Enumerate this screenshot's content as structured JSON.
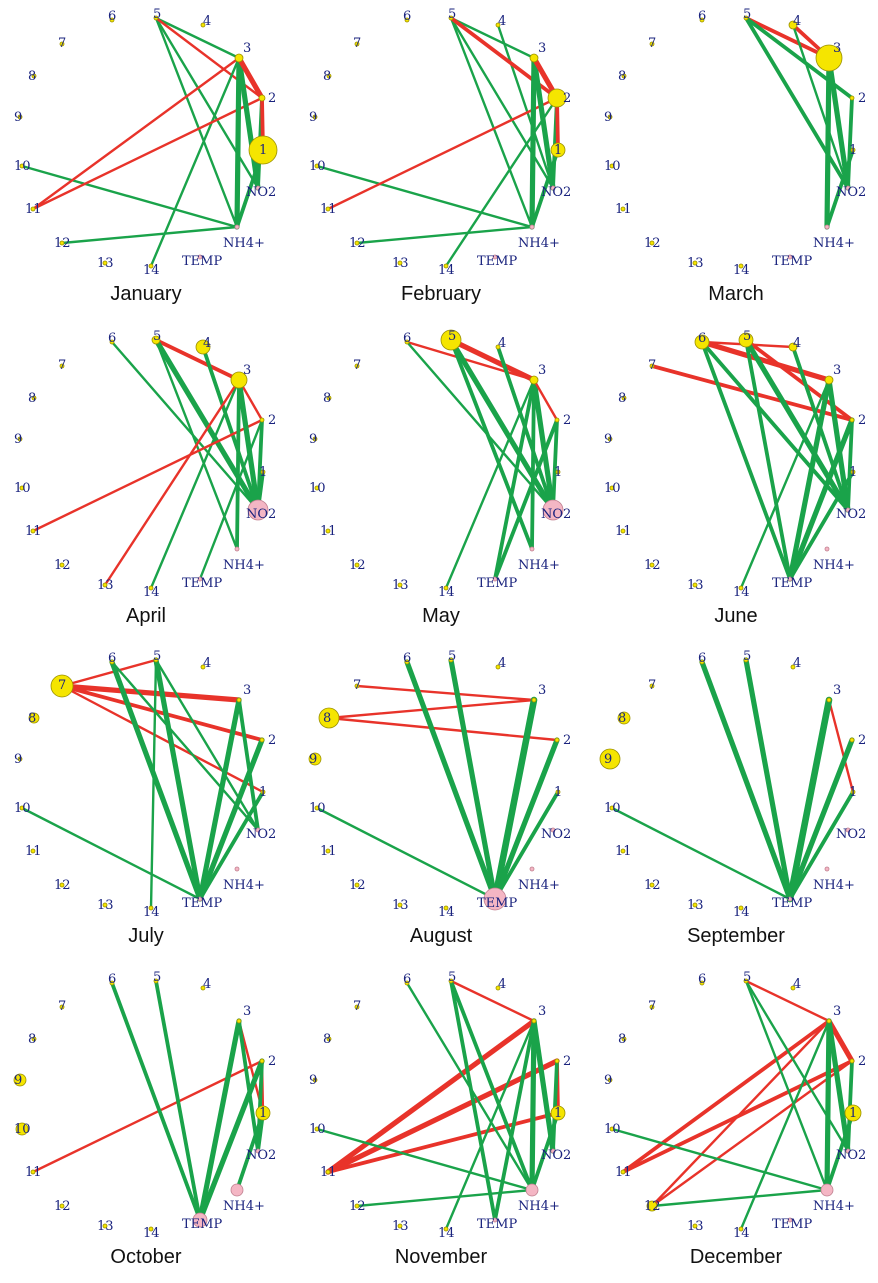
{
  "colors": {
    "positive": "#1aa34a",
    "negative": "#e8332a",
    "station_node": "#f5e500",
    "station_stroke": "#9a9000",
    "pollutant_node": "#f4b6c4",
    "pollutant_stroke": "#c08090",
    "label": "#1a237e"
  },
  "nodes": [
    {
      "id": "1",
      "label": "1",
      "kind": "station"
    },
    {
      "id": "2",
      "label": "2",
      "kind": "station"
    },
    {
      "id": "3",
      "label": "3",
      "kind": "station"
    },
    {
      "id": "4",
      "label": "4",
      "kind": "station"
    },
    {
      "id": "5",
      "label": "5",
      "kind": "station"
    },
    {
      "id": "6",
      "label": "6",
      "kind": "station"
    },
    {
      "id": "7",
      "label": "7",
      "kind": "station"
    },
    {
      "id": "8",
      "label": "8",
      "kind": "station"
    },
    {
      "id": "9",
      "label": "9",
      "kind": "station"
    },
    {
      "id": "10",
      "label": "10",
      "kind": "station"
    },
    {
      "id": "11",
      "label": "11",
      "kind": "station"
    },
    {
      "id": "12",
      "label": "12",
      "kind": "station"
    },
    {
      "id": "13",
      "label": "13",
      "kind": "station"
    },
    {
      "id": "14",
      "label": "14",
      "kind": "station"
    },
    {
      "id": "TEMP",
      "label": "TEMP",
      "kind": "pollutant"
    },
    {
      "id": "NH4",
      "label": "NH4+",
      "kind": "pollutant"
    },
    {
      "id": "NO2",
      "label": "NO2",
      "kind": "pollutant"
    }
  ],
  "months": [
    {
      "name": "January",
      "sizes": {
        "1": 14,
        "3": 4,
        "2": 3
      },
      "edges": [
        [
          "5",
          "3",
          "pos",
          1
        ],
        [
          "5",
          "NO2",
          "pos",
          1
        ],
        [
          "5",
          "NH4",
          "pos",
          1
        ],
        [
          "5",
          "2",
          "neg",
          1
        ],
        [
          "14",
          "3",
          "pos",
          1
        ],
        [
          "10",
          "NH4",
          "pos",
          1
        ],
        [
          "12",
          "NH4",
          "pos",
          1
        ],
        [
          "11",
          "3",
          "neg",
          1
        ],
        [
          "11",
          "2",
          "neg",
          1
        ],
        [
          "3",
          "NH4",
          "pos",
          3
        ],
        [
          "3",
          "NO2",
          "pos",
          3
        ],
        [
          "2",
          "NO2",
          "pos",
          2
        ],
        [
          "1",
          "NH4",
          "pos",
          2
        ],
        [
          "3",
          "2",
          "neg",
          3
        ],
        [
          "2",
          "1",
          "neg",
          2
        ]
      ]
    },
    {
      "name": "February",
      "sizes": {
        "2": 9,
        "1": 7,
        "3": 4
      },
      "edges": [
        [
          "5",
          "3",
          "pos",
          1
        ],
        [
          "5",
          "NO2",
          "pos",
          1
        ],
        [
          "5",
          "NH4",
          "pos",
          1
        ],
        [
          "4",
          "NO2",
          "pos",
          1
        ],
        [
          "5",
          "2",
          "neg",
          2
        ],
        [
          "14",
          "2",
          "pos",
          1
        ],
        [
          "10",
          "NH4",
          "pos",
          1
        ],
        [
          "12",
          "NH4",
          "pos",
          1
        ],
        [
          "11",
          "2",
          "neg",
          1
        ],
        [
          "3",
          "NH4",
          "pos",
          3
        ],
        [
          "3",
          "NO2",
          "pos",
          3
        ],
        [
          "2",
          "NO2",
          "pos",
          2
        ],
        [
          "1",
          "NH4",
          "pos",
          2
        ],
        [
          "3",
          "2",
          "neg",
          3
        ],
        [
          "2",
          "1",
          "neg",
          2
        ]
      ]
    },
    {
      "name": "March",
      "sizes": {
        "3": 13,
        "4": 4
      },
      "edges": [
        [
          "5",
          "3",
          "neg",
          2
        ],
        [
          "4",
          "3",
          "neg",
          2
        ],
        [
          "4",
          "NO2",
          "pos",
          1
        ],
        [
          "5",
          "NO2",
          "pos",
          2
        ],
        [
          "5",
          "2",
          "pos",
          2
        ],
        [
          "3",
          "NH4",
          "pos",
          3
        ],
        [
          "3",
          "NO2",
          "pos",
          3
        ],
        [
          "2",
          "NO2",
          "pos",
          2
        ],
        [
          "1",
          "NH4",
          "pos",
          2
        ]
      ]
    },
    {
      "name": "April",
      "sizes": {
        "NO2": 10,
        "3": 8,
        "4": 7,
        "5": 4
      },
      "edges": [
        [
          "5",
          "3",
          "neg",
          2
        ],
        [
          "6",
          "NO2",
          "pos",
          1
        ],
        [
          "5",
          "NO2",
          "pos",
          3
        ],
        [
          "4",
          "NO2",
          "pos",
          2
        ],
        [
          "5",
          "NH4",
          "pos",
          1
        ],
        [
          "14",
          "3",
          "pos",
          1
        ],
        [
          "TEMP",
          "2",
          "pos",
          1
        ],
        [
          "11",
          "2",
          "neg",
          1
        ],
        [
          "13",
          "3",
          "neg",
          1
        ],
        [
          "3",
          "2",
          "neg",
          1
        ],
        [
          "3",
          "NO2",
          "pos",
          3
        ],
        [
          "3",
          "NH4",
          "pos",
          2
        ],
        [
          "2",
          "NO2",
          "pos",
          2
        ],
        [
          "1",
          "NO2",
          "pos",
          2
        ]
      ]
    },
    {
      "name": "May",
      "sizes": {
        "5": 10,
        "NO2": 10,
        "3": 4
      },
      "edges": [
        [
          "5",
          "3",
          "neg",
          3
        ],
        [
          "6",
          "3",
          "neg",
          1
        ],
        [
          "5",
          "NO2",
          "pos",
          3
        ],
        [
          "6",
          "NO2",
          "pos",
          1
        ],
        [
          "4",
          "NO2",
          "pos",
          2
        ],
        [
          "5",
          "NH4",
          "pos",
          2
        ],
        [
          "14",
          "3",
          "pos",
          1
        ],
        [
          "TEMP",
          "3",
          "pos",
          2
        ],
        [
          "TEMP",
          "2",
          "pos",
          2
        ],
        [
          "3",
          "NO2",
          "pos",
          3
        ],
        [
          "3",
          "NH4",
          "pos",
          2
        ],
        [
          "2",
          "NO2",
          "pos",
          2
        ],
        [
          "3",
          "2",
          "neg",
          1
        ]
      ]
    },
    {
      "name": "June",
      "sizes": {
        "6": 7,
        "5": 7,
        "3": 4,
        "4": 4
      },
      "edges": [
        [
          "6",
          "3",
          "neg",
          3
        ],
        [
          "7",
          "2",
          "neg",
          2
        ],
        [
          "5",
          "2",
          "neg",
          2
        ],
        [
          "6",
          "4",
          "neg",
          1
        ],
        [
          "6",
          "NO2",
          "pos",
          2
        ],
        [
          "5",
          "NO2",
          "pos",
          3
        ],
        [
          "6",
          "TEMP",
          "pos",
          2
        ],
        [
          "5",
          "TEMP",
          "pos",
          2
        ],
        [
          "4",
          "NO2",
          "pos",
          2
        ],
        [
          "14",
          "3",
          "pos",
          1
        ],
        [
          "TEMP",
          "3",
          "pos",
          3
        ],
        [
          "TEMP",
          "2",
          "pos",
          3
        ],
        [
          "TEMP",
          "1",
          "pos",
          2
        ],
        [
          "3",
          "NO2",
          "pos",
          3
        ],
        [
          "2",
          "NO2",
          "pos",
          2
        ]
      ]
    },
    {
      "name": "July",
      "sizes": {
        "7": 11,
        "8": 5
      },
      "edges": [
        [
          "7",
          "3",
          "neg",
          3
        ],
        [
          "7",
          "2",
          "neg",
          2
        ],
        [
          "7",
          "1",
          "neg",
          1
        ],
        [
          "7",
          "5",
          "neg",
          1
        ],
        [
          "6",
          "NO2",
          "pos",
          1
        ],
        [
          "5",
          "NO2",
          "pos",
          1
        ],
        [
          "6",
          "TEMP",
          "pos",
          3
        ],
        [
          "5",
          "TEMP",
          "pos",
          3
        ],
        [
          "14",
          "5",
          "pos",
          1
        ],
        [
          "10",
          "TEMP",
          "pos",
          1
        ],
        [
          "TEMP",
          "3",
          "pos",
          3
        ],
        [
          "TEMP",
          "2",
          "pos",
          3
        ],
        [
          "TEMP",
          "1",
          "pos",
          2
        ],
        [
          "3",
          "NO2",
          "pos",
          2
        ]
      ]
    },
    {
      "name": "August",
      "sizes": {
        "TEMP": 11,
        "8": 10,
        "9": 6
      },
      "edges": [
        [
          "7",
          "3",
          "neg",
          1
        ],
        [
          "8",
          "3",
          "neg",
          1
        ],
        [
          "8",
          "2",
          "neg",
          1
        ],
        [
          "6",
          "TEMP",
          "pos",
          3
        ],
        [
          "5",
          "TEMP",
          "pos",
          3
        ],
        [
          "10",
          "TEMP",
          "pos",
          1
        ],
        [
          "TEMP",
          "3",
          "pos",
          4
        ],
        [
          "TEMP",
          "2",
          "pos",
          3
        ],
        [
          "TEMP",
          "1",
          "pos",
          2
        ]
      ]
    },
    {
      "name": "September",
      "sizes": {
        "9": 10,
        "8": 6
      },
      "edges": [
        [
          "3",
          "1",
          "neg",
          1
        ],
        [
          "6",
          "TEMP",
          "pos",
          3
        ],
        [
          "5",
          "TEMP",
          "pos",
          3
        ],
        [
          "10",
          "TEMP",
          "pos",
          1
        ],
        [
          "TEMP",
          "3",
          "pos",
          4
        ],
        [
          "TEMP",
          "2",
          "pos",
          3
        ],
        [
          "TEMP",
          "1",
          "pos",
          2
        ]
      ]
    },
    {
      "name": "October",
      "sizes": {
        "1": 7,
        "9": 6,
        "10": 6,
        "NH4": 6,
        "TEMP": 7
      },
      "edges": [
        [
          "3",
          "1",
          "neg",
          1
        ],
        [
          "2",
          "1",
          "neg",
          1
        ],
        [
          "11",
          "2",
          "neg",
          1
        ],
        [
          "6",
          "TEMP",
          "pos",
          2
        ],
        [
          "5",
          "TEMP",
          "pos",
          2
        ],
        [
          "TEMP",
          "3",
          "pos",
          3
        ],
        [
          "TEMP",
          "2",
          "pos",
          3
        ],
        [
          "3",
          "NO2",
          "pos",
          2
        ],
        [
          "2",
          "NO2",
          "pos",
          2
        ],
        [
          "1",
          "NO2",
          "pos",
          2
        ],
        [
          "NH4",
          "1",
          "pos",
          2
        ]
      ]
    },
    {
      "name": "November",
      "sizes": {
        "1": 7,
        "NH4": 6
      },
      "edges": [
        [
          "5",
          "3",
          "neg",
          1
        ],
        [
          "11",
          "3",
          "neg",
          3
        ],
        [
          "11",
          "2",
          "neg",
          3
        ],
        [
          "11",
          "1",
          "neg",
          2
        ],
        [
          "2",
          "1",
          "neg",
          2
        ],
        [
          "5",
          "NH4",
          "pos",
          2
        ],
        [
          "6",
          "NH4",
          "pos",
          1
        ],
        [
          "5",
          "TEMP",
          "pos",
          2
        ],
        [
          "14",
          "3",
          "pos",
          1
        ],
        [
          "10",
          "NH4",
          "pos",
          1
        ],
        [
          "12",
          "NH4",
          "pos",
          1
        ],
        [
          "TEMP",
          "3",
          "pos",
          2
        ],
        [
          "3",
          "NH4",
          "pos",
          3
        ],
        [
          "3",
          "NO2",
          "pos",
          3
        ],
        [
          "2",
          "NO2",
          "pos",
          2
        ],
        [
          "1",
          "NH4",
          "pos",
          2
        ]
      ]
    },
    {
      "name": "December",
      "sizes": {
        "1": 8,
        "NH4": 6,
        "12": 5
      },
      "edges": [
        [
          "5",
          "3",
          "neg",
          1
        ],
        [
          "11",
          "3",
          "neg",
          2
        ],
        [
          "11",
          "2",
          "neg",
          2
        ],
        [
          "12",
          "3",
          "neg",
          1
        ],
        [
          "12",
          "2",
          "neg",
          1
        ],
        [
          "3",
          "2",
          "neg",
          3
        ],
        [
          "5",
          "NH4",
          "pos",
          1
        ],
        [
          "5",
          "NO2",
          "pos",
          1
        ],
        [
          "14",
          "3",
          "pos",
          1
        ],
        [
          "10",
          "NH4",
          "pos",
          1
        ],
        [
          "12",
          "NH4",
          "pos",
          1
        ],
        [
          "3",
          "NH4",
          "pos",
          3
        ],
        [
          "3",
          "NO2",
          "pos",
          3
        ],
        [
          "2",
          "NO2",
          "pos",
          2
        ],
        [
          "1",
          "NH4",
          "pos",
          2
        ]
      ]
    }
  ]
}
